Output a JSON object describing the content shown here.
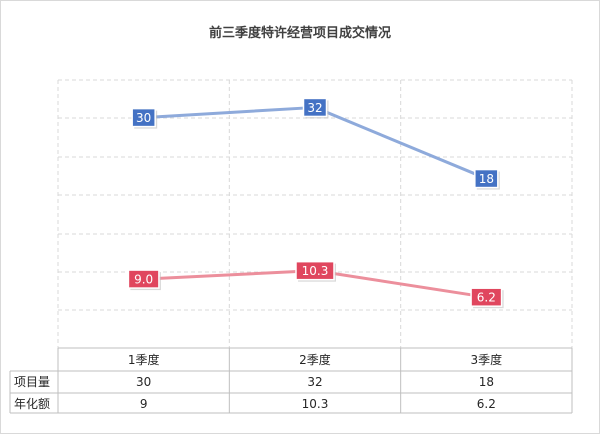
{
  "chart_data": {
    "type": "line",
    "title": "前三季度特许经营项目成交情况",
    "categories": [
      "1季度",
      "2季度",
      "3季度"
    ],
    "series": [
      {
        "name": "项目量",
        "values": [
          30,
          32,
          18
        ],
        "labels": [
          "30",
          "32",
          "18"
        ],
        "color": "#4472c4",
        "line_color": "#8eaadb"
      },
      {
        "name": "年化额",
        "values": [
          9,
          10.3,
          6.2
        ],
        "labels": [
          "9.0",
          "10.3",
          "6.2"
        ],
        "table_values": [
          "9",
          "10.3",
          "6.2"
        ],
        "color": "#e0465e",
        "line_color": "#ec8f9c"
      }
    ],
    "grid": true,
    "legend": "data-table"
  }
}
